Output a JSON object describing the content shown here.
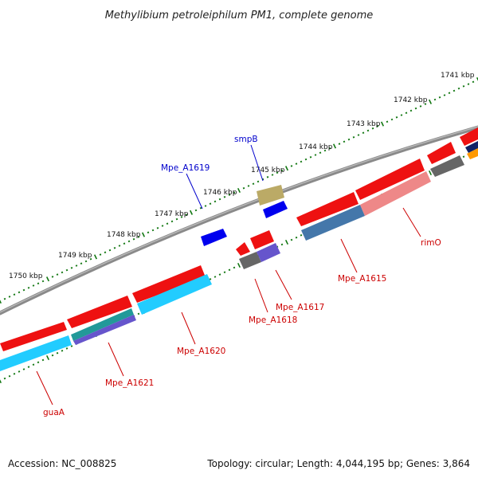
{
  "header": {
    "title": "Methylibium petroleiphilum PM1, complete genome"
  },
  "footer": {
    "accession": "Accession: NC_008825",
    "summary": "Topology: circular; Length: 4,044,195 bp; Genes: 3,864"
  },
  "scale": {
    "unit": "kbp",
    "ticks": [
      "1741 kbp",
      "1742 kbp",
      "1743 kbp",
      "1744 kbp",
      "1745 kbp",
      "1746 kbp",
      "1747 kbp",
      "1748 kbp",
      "1749 kbp",
      "1750 kbp"
    ]
  },
  "gene_labels": {
    "smpB": "smpB",
    "Mpe_A1619": "Mpe_A1619",
    "rimO": "rimO",
    "Mpe_A1615": "Mpe_A1615",
    "Mpe_A1617": "Mpe_A1617",
    "Mpe_A1618": "Mpe_A1618",
    "Mpe_A1620": "Mpe_A1620",
    "Mpe_A1621": "Mpe_A1621",
    "guaA": "guaA"
  },
  "colors": {
    "forward_strand_gene": "#ee1111",
    "reverse_strand_gene": "#0000ee",
    "cds_cyan": "#22ccff",
    "cds_steel": "#4477aa",
    "cds_pink": "#ee8888",
    "cds_grey": "#666666",
    "cds_purple": "#6655cc",
    "cds_olive": "#bbaa66",
    "cds_teal": "#229999",
    "backbone": "#888888",
    "tick_marks": "#117711"
  }
}
